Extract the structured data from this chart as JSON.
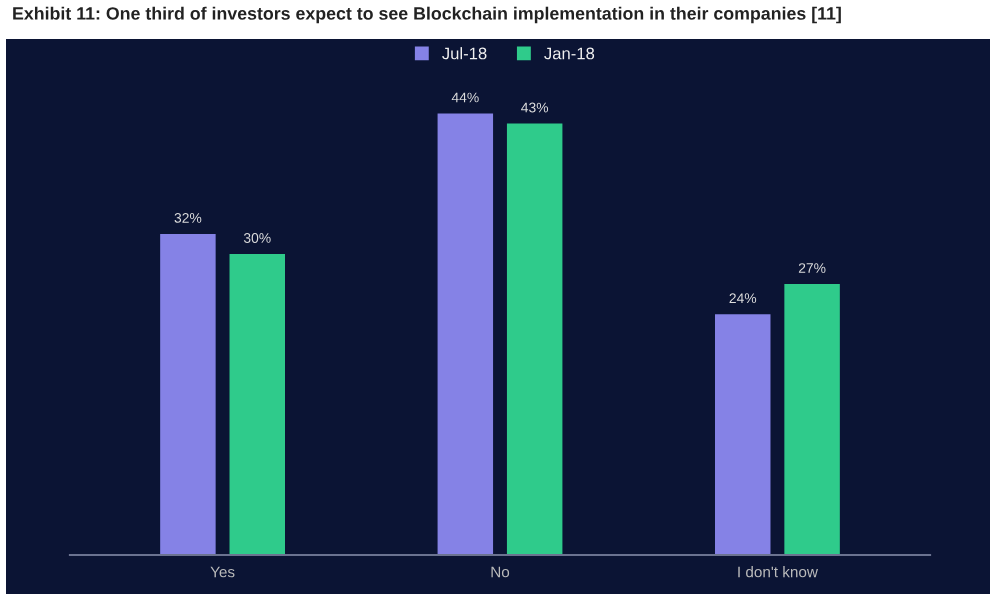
{
  "chart_data": {
    "type": "bar",
    "title": "Exhibit 11: One third of investors expect to see Blockchain implementation in their companies [11]",
    "categories": [
      "Yes",
      "No",
      "I don't know"
    ],
    "series": [
      {
        "name": "Jul-18",
        "color": "#8582e6",
        "values": [
          32,
          44,
          24
        ],
        "value_labels": [
          "32%",
          "44%",
          "24%"
        ]
      },
      {
        "name": "Jan-18",
        "color": "#2fcb8b",
        "values": [
          30,
          43,
          27
        ],
        "value_labels": [
          "30%",
          "43%",
          "27%"
        ]
      }
    ],
    "legend": "top",
    "grid": false
  }
}
